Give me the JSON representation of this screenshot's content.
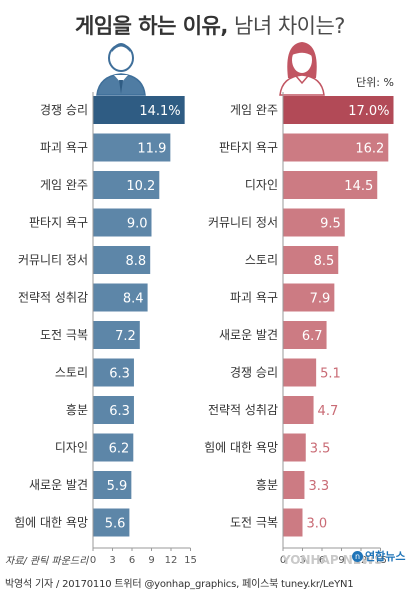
{
  "header": {
    "title_bold": "게임을 하는 이유,",
    "title_rest": " 남녀 차이는?",
    "unit": "단위: %"
  },
  "footer": {
    "source": "자료/ 콴틱 파운드리",
    "credit": "박영석 기자 / 20170110 트위터 @yonhap_graphics, 페이스북 tuney.kr/LeYN1",
    "watermark": "YONHAP NEWS",
    "logo": "연합뉴스",
    "logo_mark": "n"
  },
  "icons": {
    "male": "male-avatar-icon",
    "female": "female-avatar-icon"
  },
  "colors": {
    "male_bar": "#5d86a8",
    "male_top": "#2f5c83",
    "female_bar": "#cc7b83",
    "female_top": "#b24a57"
  },
  "chart_data": [
    {
      "type": "bar",
      "orientation": "horizontal",
      "title": "",
      "categories": [
        "경쟁 승리",
        "파괴 욕구",
        "게임 완주",
        "판타지 욕구",
        "커뮤니티 정서",
        "전략적 성취감",
        "도전 극복",
        "스토리",
        "흥분",
        "디자인",
        "새로운 발견",
        "힘에 대한 욕망"
      ],
      "values": [
        14.1,
        11.9,
        10.2,
        9.0,
        8.8,
        8.4,
        7.2,
        6.3,
        6.3,
        6.2,
        5.9,
        5.6
      ],
      "value_labels": [
        "14.1%",
        "11.9",
        "10.2",
        "9.0",
        "8.8",
        "8.4",
        "7.2",
        "6.3",
        "6.3",
        "6.2",
        "5.9",
        "5.6"
      ],
      "xlim": [
        0,
        15
      ],
      "xticks": [
        "0",
        "3",
        "6",
        "9",
        "12",
        "15"
      ]
    },
    {
      "type": "bar",
      "orientation": "horizontal",
      "title": "",
      "categories": [
        "게임 완주",
        "판타지 욕구",
        "디자인",
        "커뮤니티 정서",
        "스토리",
        "파괴 욕구",
        "새로운 발견",
        "경쟁 승리",
        "전략적 성취감",
        "힘에 대한 욕망",
        "흥분",
        "도전 극복"
      ],
      "values": [
        17.0,
        16.2,
        14.5,
        9.5,
        8.5,
        7.9,
        6.7,
        5.1,
        4.7,
        3.5,
        3.3,
        3.0
      ],
      "value_labels": [
        "17.0%",
        "16.2",
        "14.5",
        "9.5",
        "8.5",
        "7.9",
        "6.7",
        "5.1",
        "4.7",
        "3.5",
        "3.3",
        "3.0"
      ],
      "xlim": [
        0,
        15
      ],
      "xticks": [
        "0",
        "3",
        "6",
        "9",
        "12",
        "15"
      ]
    }
  ]
}
